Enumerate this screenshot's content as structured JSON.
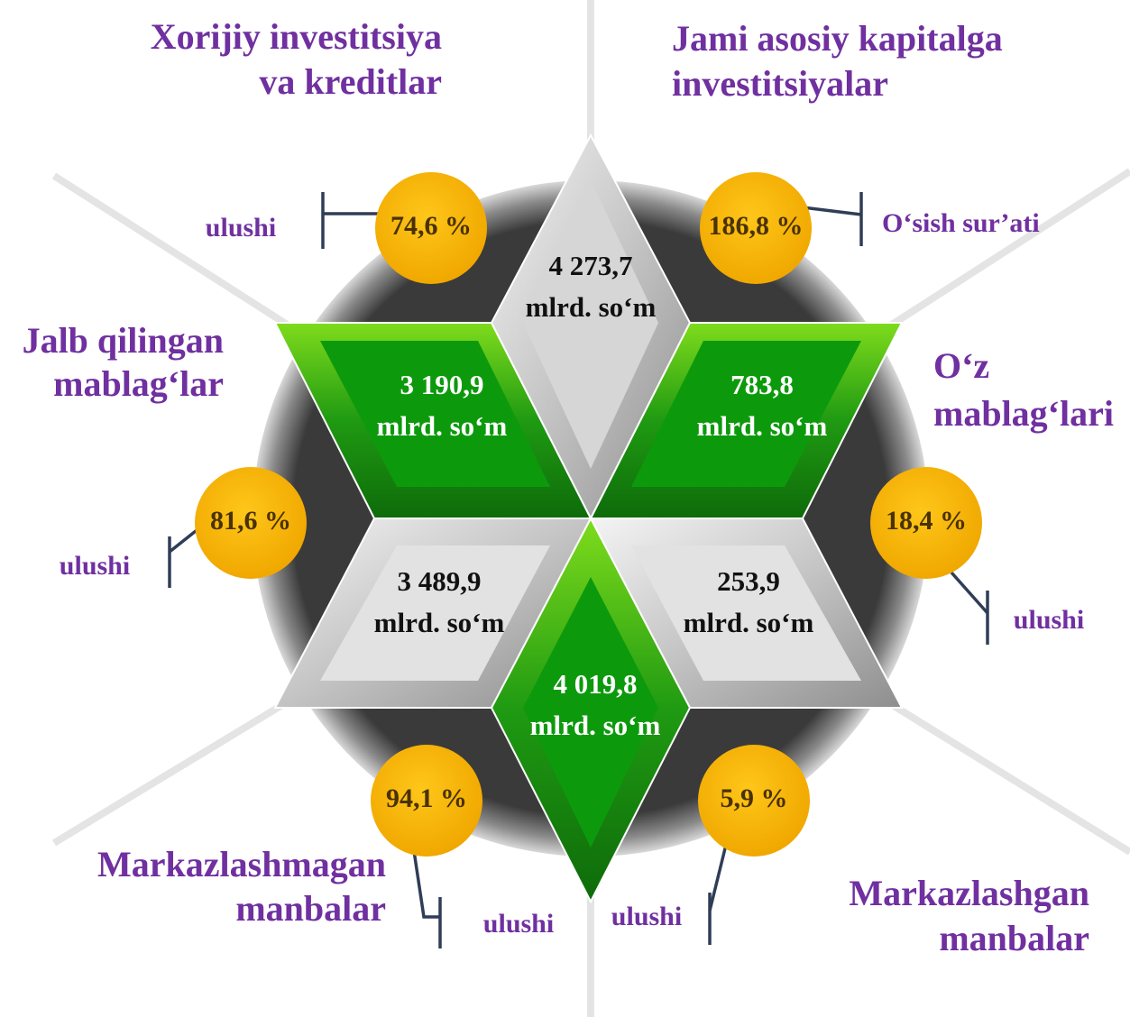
{
  "titles": [
    [
      "Xorijiy investitsiya",
      "va kreditlar"
    ],
    [
      "Jami asosiy kapitalga",
      "investitsiyalar"
    ],
    [
      "Jalb qilingan",
      "mablag‘lar"
    ],
    [
      "O‘z",
      "mablag‘lari"
    ],
    [
      "Markazlashmagan",
      "manbalar"
    ],
    [
      "Markazlashgan",
      "manbalar"
    ]
  ],
  "amounts": [
    {
      "value": "4 273,7",
      "unit": "mlrd. so‘m"
    },
    {
      "value": "3 190,9",
      "unit": "mlrd. so‘m"
    },
    {
      "value": "783,8",
      "unit": "mlrd. so‘m"
    },
    {
      "value": "3 489,9",
      "unit": "mlrd. so‘m"
    },
    {
      "value": "253,9",
      "unit": "mlrd. so‘m"
    },
    {
      "value": "4 019,8",
      "unit": "mlrd. so‘m"
    }
  ],
  "badges": [
    {
      "percent": "74,6 %",
      "caption": "ulushi"
    },
    {
      "percent": "186,8 %",
      "caption": "O‘sish sur’ati"
    },
    {
      "percent": "81,6 %",
      "caption": "ulushi"
    },
    {
      "percent": "18,4 %",
      "caption": "ulushi"
    },
    {
      "percent": "94,1 %",
      "caption": "ulushi"
    },
    {
      "percent": "5,9 %",
      "caption": "ulushi"
    }
  ]
}
